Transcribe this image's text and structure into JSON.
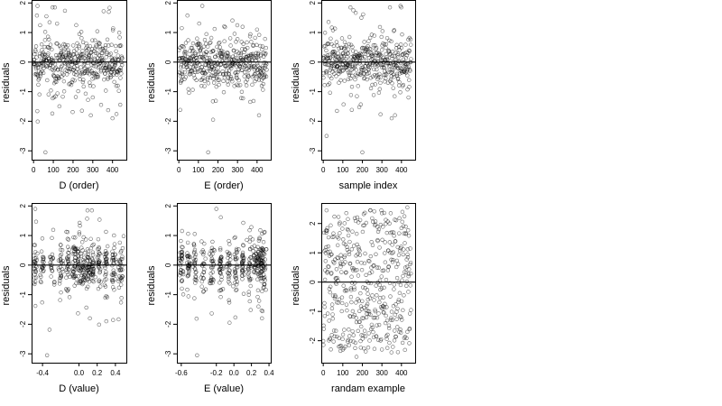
{
  "figure": {
    "ylabel": "residuals",
    "point_color": "#000000",
    "frame_color": "#000000",
    "background": "#ffffff"
  },
  "chart_data": [
    {
      "type": "scatter",
      "id": "d-order",
      "xlabel": "D (order)",
      "ylabel": "residuals",
      "xlim": [
        -10,
        470
      ],
      "ylim": [
        -3.3,
        2.1
      ],
      "xticks": [
        0,
        100,
        200,
        300,
        400
      ],
      "yticks": [
        -3,
        -2,
        -1,
        0,
        1,
        2
      ],
      "hline": 0,
      "pattern": "order-clustered",
      "n_points": 450,
      "notable_points": [
        {
          "x": 20,
          "y": 1.9
        },
        {
          "x": 65,
          "y": 1.55
        },
        {
          "x": 60,
          "y": -3.05
        },
        {
          "x": 290,
          "y": -1.8
        },
        {
          "x": 400,
          "y": -1.9
        }
      ]
    },
    {
      "type": "scatter",
      "id": "e-order",
      "xlabel": "E (order)",
      "ylabel": "residuals",
      "xlim": [
        -10,
        470
      ],
      "ylim": [
        -3.3,
        2.1
      ],
      "xticks": [
        0,
        100,
        200,
        300,
        400
      ],
      "yticks": [
        -3,
        -2,
        -1,
        0,
        1,
        2
      ],
      "hline": 0,
      "pattern": "order-clustered",
      "n_points": 450,
      "notable_points": [
        {
          "x": 120,
          "y": 1.9
        },
        {
          "x": 15,
          "y": 1.15
        },
        {
          "x": 150,
          "y": -3.05
        },
        {
          "x": 175,
          "y": -1.95
        },
        {
          "x": 410,
          "y": -1.8
        }
      ]
    },
    {
      "type": "scatter",
      "id": "sample-index",
      "xlabel": "sample index",
      "ylabel": "residuals",
      "xlim": [
        -10,
        470
      ],
      "ylim": [
        -3.3,
        2.1
      ],
      "xticks": [
        0,
        100,
        200,
        300,
        400
      ],
      "yticks": [
        -3,
        -2,
        -1,
        0,
        1,
        2
      ],
      "hline": 0,
      "pattern": "index-clustered",
      "n_points": 450,
      "notable_points": [
        {
          "x": 195,
          "y": 1.5
        },
        {
          "x": 395,
          "y": 1.9
        },
        {
          "x": 200,
          "y": -3.05
        },
        {
          "x": 350,
          "y": -1.9
        },
        {
          "x": 70,
          "y": -1.65
        }
      ]
    },
    {
      "type": "scatter",
      "id": "d-value",
      "xlabel": "D (value)",
      "ylabel": "residuals",
      "xlim": [
        -0.52,
        0.52
      ],
      "ylim": [
        -3.3,
        2.1
      ],
      "xticks": [
        -0.4,
        0.0,
        0.2,
        0.4
      ],
      "xtick_labels": [
        "-0.4",
        "0.0",
        "0.2",
        "0.4"
      ],
      "yticks": [
        -3,
        -2,
        -1,
        0,
        1,
        2
      ],
      "hline": 0,
      "pattern": "value-banded",
      "n_points": 450,
      "notable_points": [
        {
          "x": -0.48,
          "y": 1.9
        },
        {
          "x": -0.35,
          "y": -3.05
        },
        {
          "x": 0.12,
          "y": -1.8
        },
        {
          "x": 0.3,
          "y": -1.9
        }
      ]
    },
    {
      "type": "scatter",
      "id": "e-value",
      "xlabel": "E (value)",
      "ylabel": "residuals",
      "xlim": [
        -0.65,
        0.42
      ],
      "ylim": [
        -3.3,
        2.1
      ],
      "xticks": [
        -0.6,
        -0.2,
        0.0,
        0.2,
        0.4
      ],
      "xtick_labels": [
        "-0.6",
        "-0.2",
        "0.0",
        "0.2",
        "0.4"
      ],
      "yticks": [
        -3,
        -2,
        -1,
        0,
        1,
        2
      ],
      "hline": 0,
      "pattern": "value-banded",
      "n_points": 450,
      "notable_points": [
        {
          "x": -0.2,
          "y": 1.9
        },
        {
          "x": -0.42,
          "y": -3.05
        },
        {
          "x": -0.05,
          "y": -1.95
        },
        {
          "x": 0.32,
          "y": -1.8
        }
      ]
    },
    {
      "type": "scatter",
      "id": "random-example",
      "xlabel": "randam example",
      "ylabel": "residuals",
      "xlim": [
        -10,
        470
      ],
      "ylim": [
        -2.75,
        2.7
      ],
      "xticks": [
        0,
        100,
        200,
        300,
        400
      ],
      "yticks": [
        -2,
        -1,
        0,
        1,
        2
      ],
      "hline": 0,
      "pattern": "uniform",
      "n_points": 450,
      "notable_points": [
        {
          "x": 430,
          "y": 2.55
        },
        {
          "x": 170,
          "y": -2.55
        },
        {
          "x": 300,
          "y": -2.3
        }
      ]
    }
  ]
}
